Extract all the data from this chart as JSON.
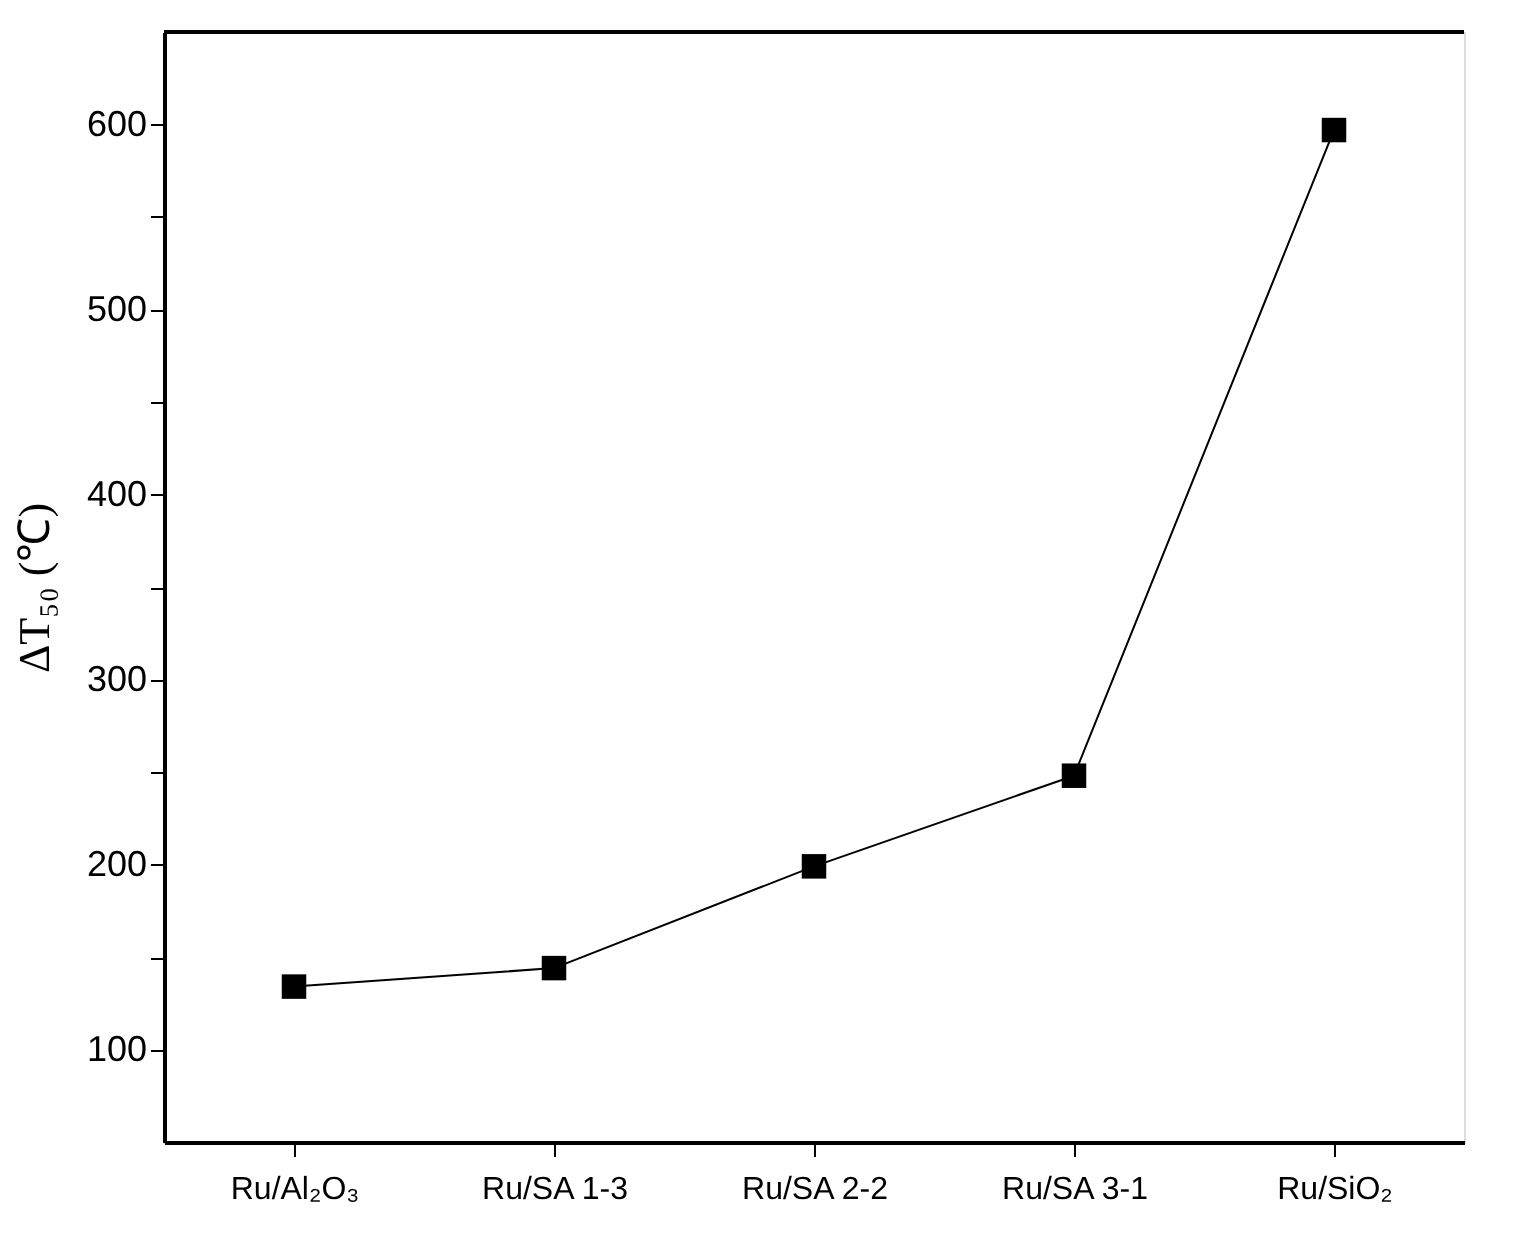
{
  "chart_data": {
    "type": "line",
    "ylabel": "ΔT₅₀ (℃)",
    "categories": [
      "Ru/Al₂O₃",
      "Ru/SA 1-3",
      "Ru/SA 2-2",
      "Ru/SA 3-1",
      "Ru/SiO₂"
    ],
    "series": [
      {
        "color": "#000000",
        "values": [
          134,
          144,
          199,
          248,
          597
        ]
      }
    ],
    "ylim": [
      50,
      650
    ],
    "yticks": [
      100,
      {
        "value": 150,
        "label": null
      },
      200,
      {
        "value": 250,
        "label": null
      },
      300,
      {
        "value": 350,
        "label": null
      },
      400,
      {
        "value": 450,
        "label": null
      },
      500,
      {
        "value": 550,
        "label": null
      },
      600
    ],
    "marker": "square",
    "line_style": "solid",
    "grid": false
  }
}
